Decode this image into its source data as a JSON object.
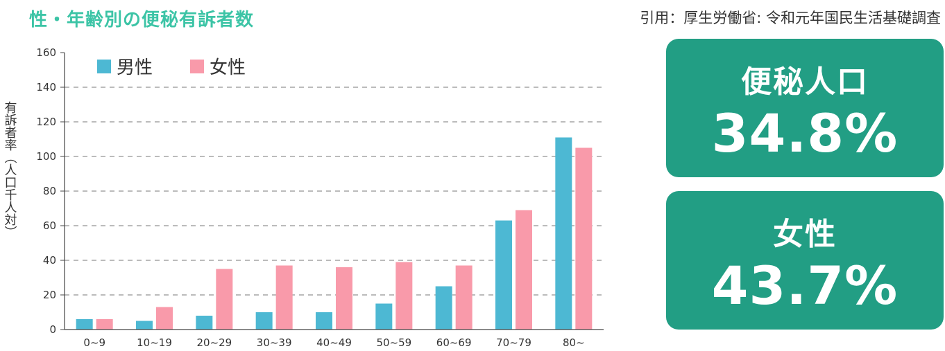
{
  "header": {
    "title": "性・年齢別の便秘有訴者数",
    "source": "引用：厚生労働省: 令和元年国民生活基礎調査"
  },
  "stats": [
    {
      "label": "便秘人口",
      "value": "34.8%"
    },
    {
      "label": "女性",
      "value": "43.7%"
    }
  ],
  "colors": {
    "male": "#4db8d3",
    "female": "#f99aaa",
    "accent": "#229e84",
    "title": "#3cc4a6"
  },
  "chart_data": {
    "type": "bar",
    "title": "",
    "xlabel": "",
    "ylabel": "有訴者率（人口千人対）",
    "ylim": [
      0,
      160
    ],
    "yticks": [
      0,
      20,
      40,
      60,
      80,
      100,
      120,
      140,
      160
    ],
    "grid": true,
    "legend_position": "top-left",
    "categories": [
      "0~9",
      "10~19",
      "20~29",
      "30~39",
      "40~49",
      "50~59",
      "60~69",
      "70~79",
      "80~"
    ],
    "series": [
      {
        "name": "男性",
        "color": "#4db8d3",
        "values": [
          6,
          5,
          8,
          10,
          10,
          15,
          25,
          63,
          111
        ]
      },
      {
        "name": "女性",
        "color": "#f99aaa",
        "values": [
          6,
          13,
          35,
          37,
          36,
          39,
          37,
          69,
          105
        ]
      }
    ]
  }
}
